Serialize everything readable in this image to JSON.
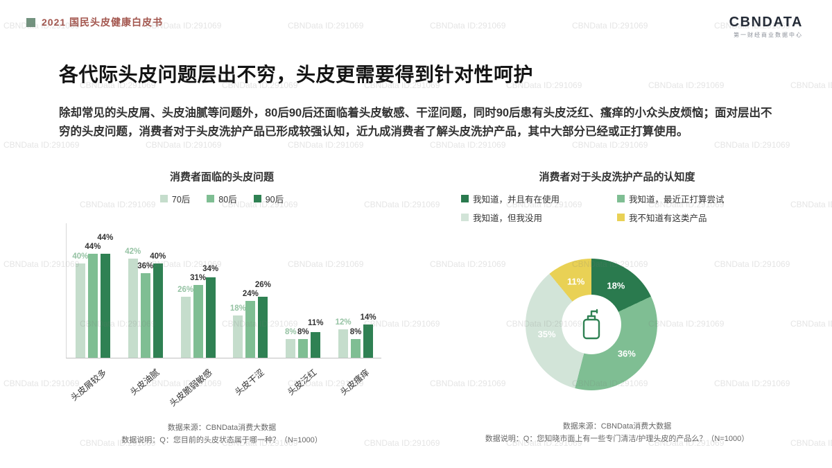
{
  "header": {
    "doc_title": "2021 国民头皮健康白皮书",
    "logo_text": "CBNDATA",
    "logo_sub": "第一财经商业数据中心"
  },
  "page": {
    "title": "各代际头皮问题层出不穷，头皮更需要得到针对性呵护",
    "body": "除却常见的头皮屑、头皮油腻等问题外，80后90后还面临着头皮敏感、干涩问题，同时90后患有头皮泛红、瘙痒的小众头皮烦恼；面对层出不穷的头皮问题，消费者对于头皮洗护产品已形成较强认知，近九成消费者了解头皮洗护产品，其中大部分已经或正打算使用。"
  },
  "watermark": "CBNData ID:291069",
  "colors": {
    "green_light": "#c5ddcc",
    "green_mid": "#7fbe93",
    "green_dark": "#2f8153",
    "yellow": "#e9d155"
  },
  "chart_data": [
    {
      "type": "bar",
      "title": "消费者面临的头皮问题",
      "categories": [
        "头皮屑较多",
        "头皮油腻",
        "头皮脆弱敏感",
        "头皮干涩",
        "头皮泛红",
        "头皮瘙痒"
      ],
      "series": [
        {
          "name": "70后",
          "color": "#c5ddcc",
          "values": [
            40,
            42,
            26,
            18,
            8,
            12
          ]
        },
        {
          "name": "80后",
          "color": "#7fbe93",
          "values": [
            44,
            36,
            31,
            24,
            8,
            8
          ]
        },
        {
          "name": "90后",
          "color": "#2f8153",
          "values": [
            44,
            40,
            34,
            26,
            11,
            14
          ]
        }
      ],
      "ylim": [
        0,
        50
      ],
      "value_label_format": "percent",
      "legend_position": "top",
      "source": "数据来源：CBNData消费大数据",
      "note": "数据说明：Q：您目前的头皮状态属于哪一种？（N=1000）"
    },
    {
      "type": "pie",
      "title": "消费者对于头皮洗护产品的认知度",
      "slices": [
        {
          "label": "我知道，并且有在使用",
          "value": 18,
          "color": "#2a7a4e"
        },
        {
          "label": "我知道，最近正打算尝试",
          "value": 36,
          "color": "#7fbe93"
        },
        {
          "label": "我知道，但我没用",
          "value": 35,
          "color": "#d2e4d8"
        },
        {
          "label": "我不知道有这类产品",
          "value": 11,
          "color": "#e9d155"
        }
      ],
      "donut": true,
      "legend_position": "top",
      "source": "数据来源：CBNData消费大数据",
      "note": "数据说明：Q：您知晓市面上有一些专门清洁/护理头皮的产品么？（N=1000）"
    }
  ]
}
